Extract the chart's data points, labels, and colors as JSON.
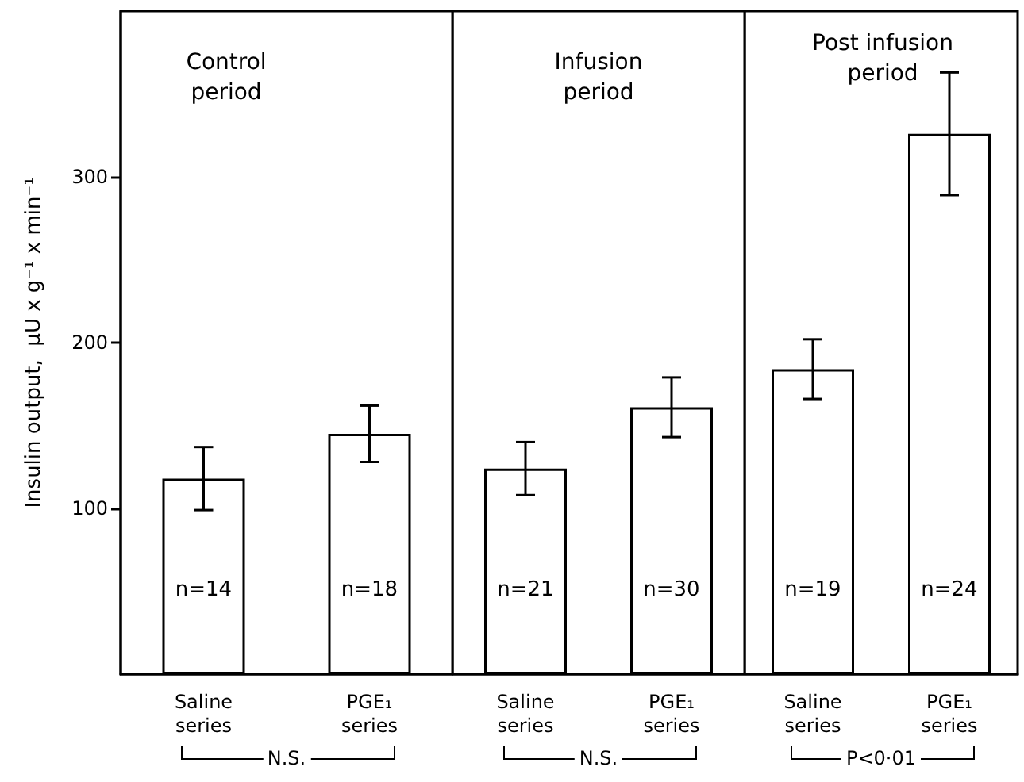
{
  "chart_data": [
    {
      "type": "bar",
      "title": "Control\nperiod",
      "ylabel": "Insulin output,  μU x g⁻¹ x min⁻¹",
      "categories": [
        "Saline\nseries",
        "PGE₁\nseries"
      ],
      "values": [
        118,
        145
      ],
      "errors": [
        19,
        17
      ],
      "color": "#ffffff",
      "ylim": [
        0,
        400
      ],
      "yticks": [
        100,
        200,
        300
      ],
      "annotations": [
        "n=14",
        "n=18",
        "N.S."
      ]
    },
    {
      "type": "bar",
      "title": "Infusion\nperiod",
      "categories": [
        "Saline\nseries",
        "PGE₁\nseries"
      ],
      "values": [
        124,
        161
      ],
      "errors": [
        16,
        18
      ],
      "color": "#ffffff",
      "ylim": [
        0,
        400
      ],
      "yticks": [
        100,
        200,
        300
      ],
      "tick_labels": "x",
      "annotations": [
        "n=21",
        "n=30",
        "N.S."
      ]
    },
    {
      "type": "bar",
      "title": "Post infusion\nperiod",
      "categories": [
        "Saline\nseries",
        "PGE₁\nseries"
      ],
      "values": [
        184,
        326
      ],
      "errors": [
        18,
        37
      ],
      "color": "#ffffff",
      "ylim": [
        0,
        400
      ],
      "yticks": [
        100,
        200,
        300
      ],
      "tick_labels": "x",
      "annotations": [
        "n=19",
        "n=24",
        "P<0·01"
      ]
    }
  ]
}
